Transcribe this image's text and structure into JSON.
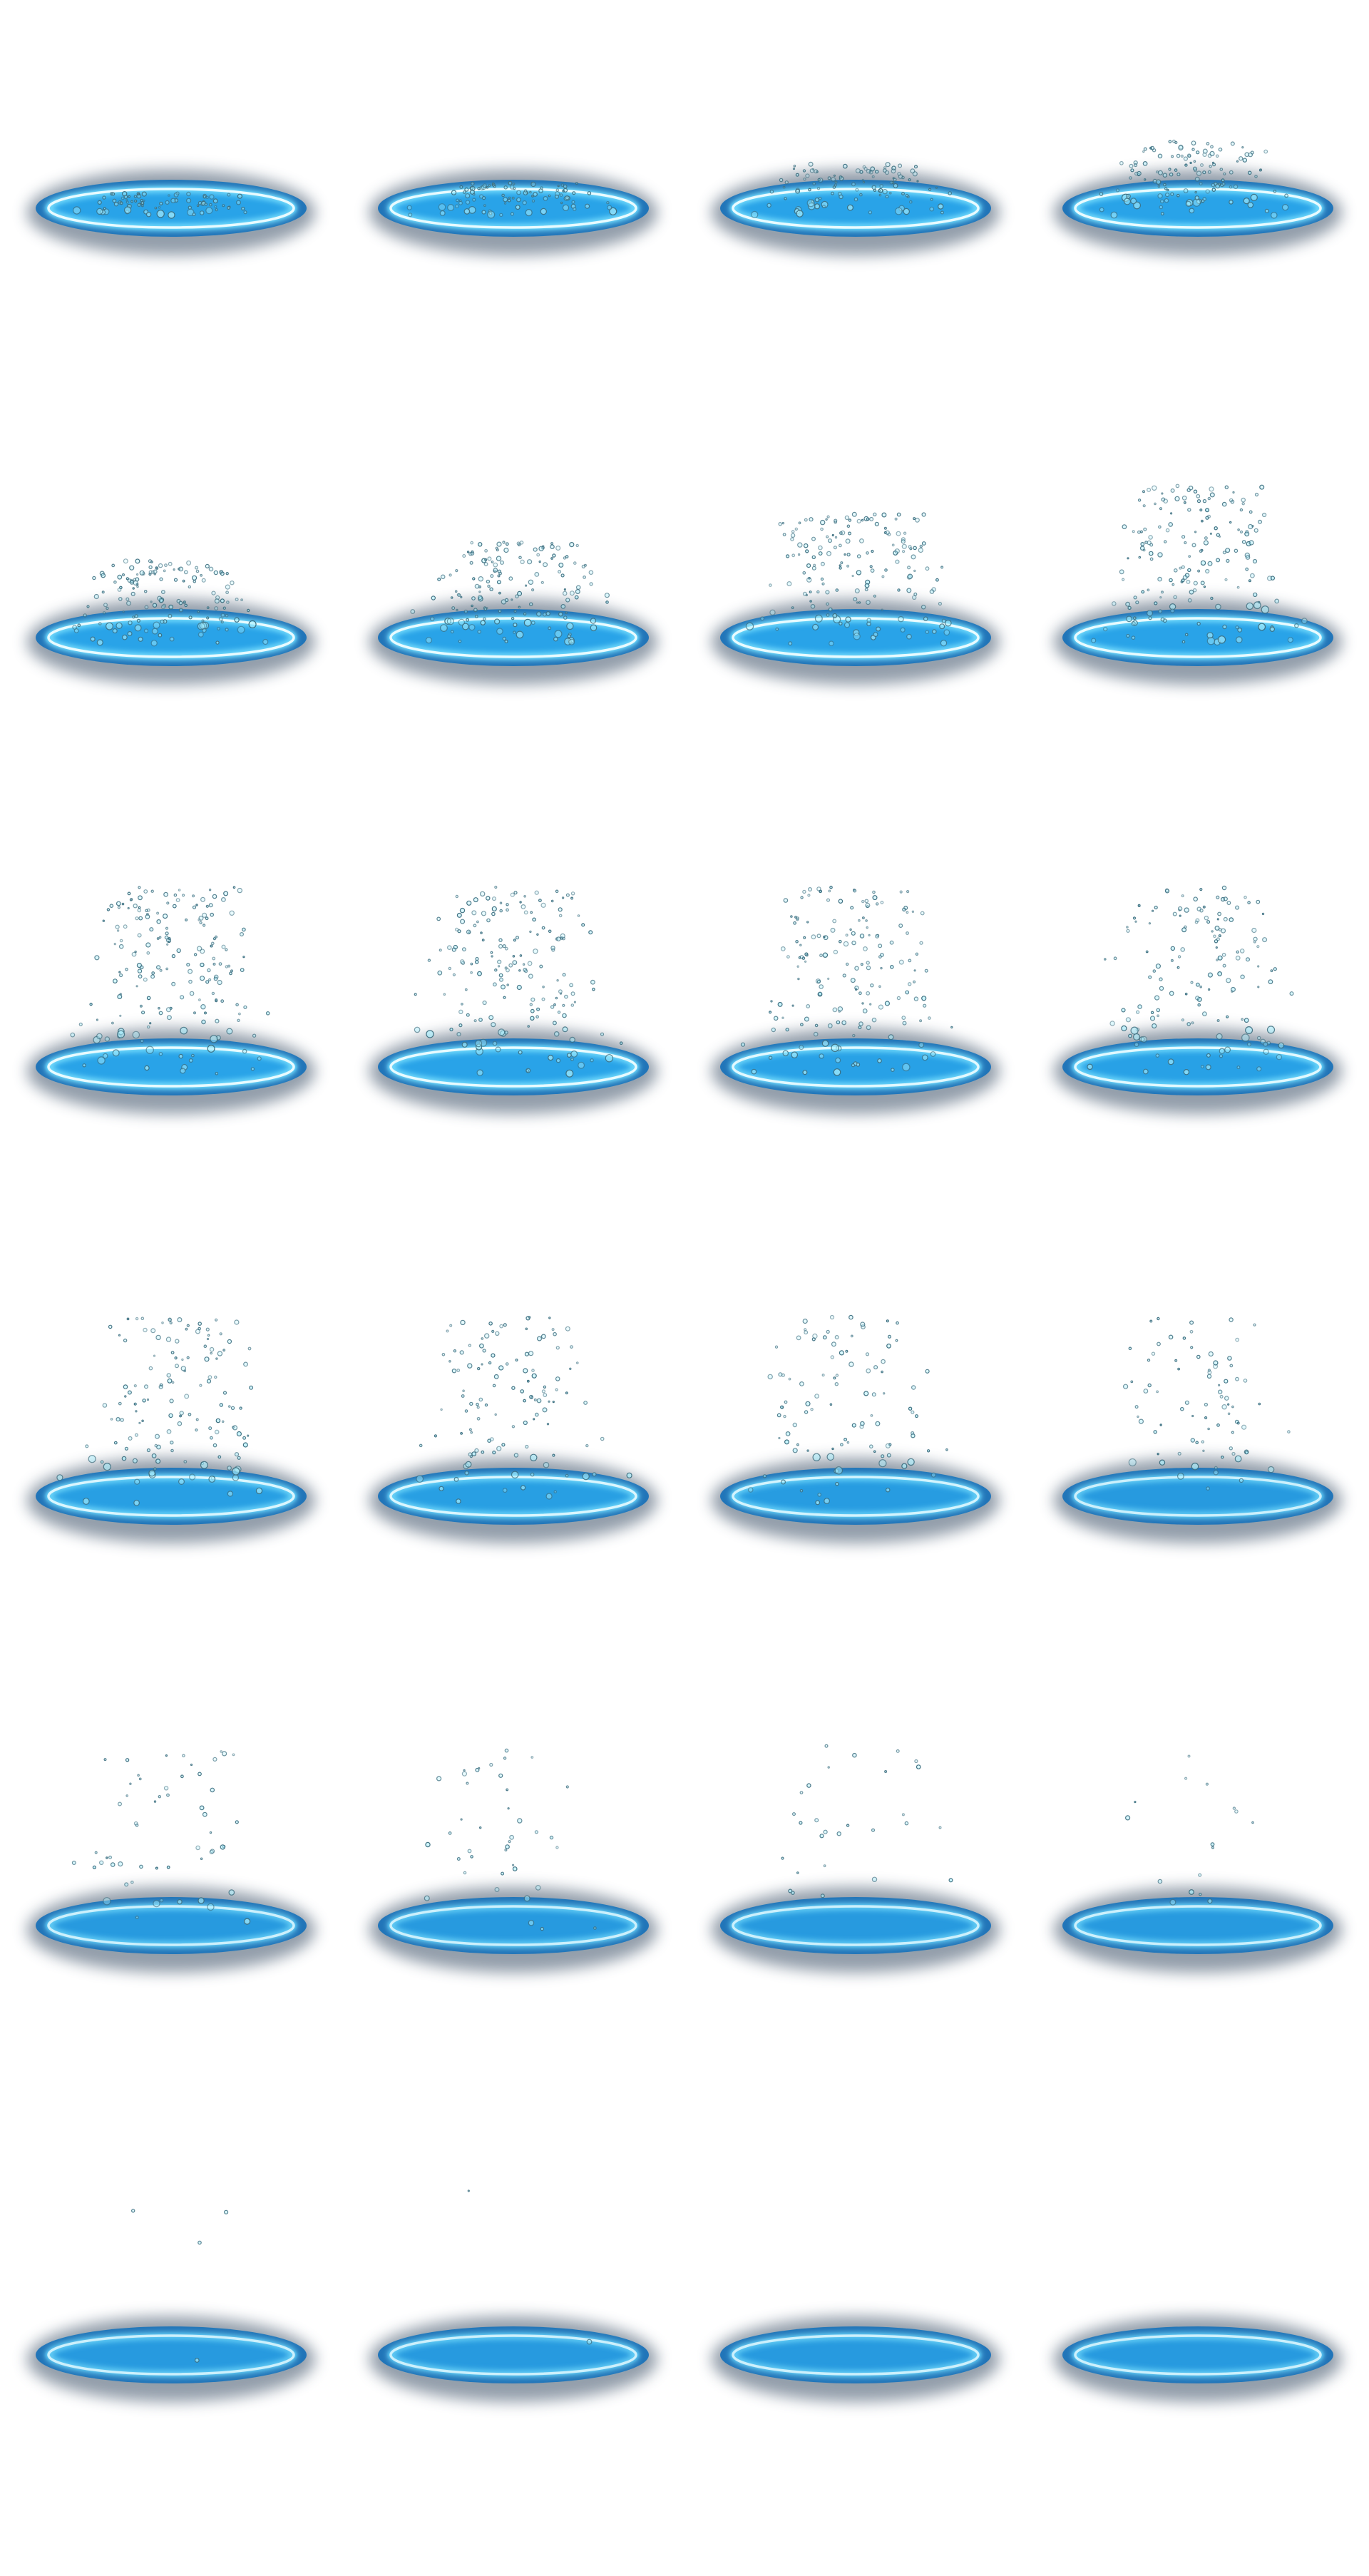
{
  "sprite_sheet": {
    "description_free": true,
    "columns": 4,
    "rows": 6,
    "frame_count": 24,
    "colors": {
      "background": "#ffffff",
      "smoke": "#3a4f66",
      "ring_outer": "#1a72b8",
      "ring_mid": "#29a9ee",
      "ring_core": "#e8fbff",
      "bubble_fill": "#a8f0ff",
      "bubble_stroke": "#3d6f80"
    },
    "frames": [
      {
        "index": 1,
        "bubble_count": 80,
        "rise_fraction": 0.12,
        "ring_glow": 1.0
      },
      {
        "index": 2,
        "bubble_count": 95,
        "rise_fraction": 0.18,
        "ring_glow": 1.0
      },
      {
        "index": 3,
        "bubble_count": 110,
        "rise_fraction": 0.28,
        "ring_glow": 1.0
      },
      {
        "index": 4,
        "bubble_count": 130,
        "rise_fraction": 0.4,
        "ring_glow": 1.0
      },
      {
        "index": 5,
        "bubble_count": 150,
        "rise_fraction": 0.45,
        "ring_glow": 1.0
      },
      {
        "index": 6,
        "bubble_count": 160,
        "rise_fraction": 0.55,
        "ring_glow": 1.0
      },
      {
        "index": 7,
        "bubble_count": 170,
        "rise_fraction": 0.7,
        "ring_glow": 1.0
      },
      {
        "index": 8,
        "bubble_count": 180,
        "rise_fraction": 0.85,
        "ring_glow": 1.0
      },
      {
        "index": 9,
        "bubble_count": 190,
        "rise_fraction": 1.0,
        "ring_glow": 1.0
      },
      {
        "index": 10,
        "bubble_count": 180,
        "rise_fraction": 1.0,
        "ring_glow": 1.0
      },
      {
        "index": 11,
        "bubble_count": 170,
        "rise_fraction": 1.0,
        "ring_glow": 0.95
      },
      {
        "index": 12,
        "bubble_count": 150,
        "rise_fraction": 1.0,
        "ring_glow": 0.95
      },
      {
        "index": 13,
        "bubble_count": 140,
        "rise_fraction": 1.0,
        "ring_glow": 0.9
      },
      {
        "index": 14,
        "bubble_count": 120,
        "rise_fraction": 1.0,
        "ring_glow": 0.9
      },
      {
        "index": 15,
        "bubble_count": 100,
        "rise_fraction": 1.0,
        "ring_glow": 0.85
      },
      {
        "index": 16,
        "bubble_count": 80,
        "rise_fraction": 1.0,
        "ring_glow": 0.8
      },
      {
        "index": 17,
        "bubble_count": 55,
        "rise_fraction": 1.0,
        "ring_glow": 0.8
      },
      {
        "index": 18,
        "bubble_count": 40,
        "rise_fraction": 1.0,
        "ring_glow": 0.8
      },
      {
        "index": 19,
        "bubble_count": 28,
        "rise_fraction": 1.0,
        "ring_glow": 0.8
      },
      {
        "index": 20,
        "bubble_count": 16,
        "rise_fraction": 1.0,
        "ring_glow": 0.8
      },
      {
        "index": 21,
        "bubble_count": 4,
        "rise_fraction": 1.0,
        "ring_glow": 0.8
      },
      {
        "index": 22,
        "bubble_count": 2,
        "rise_fraction": 1.0,
        "ring_glow": 0.8
      },
      {
        "index": 23,
        "bubble_count": 0,
        "rise_fraction": 1.0,
        "ring_glow": 0.8
      },
      {
        "index": 24,
        "bubble_count": 0,
        "rise_fraction": 1.0,
        "ring_glow": 0.8
      }
    ]
  }
}
